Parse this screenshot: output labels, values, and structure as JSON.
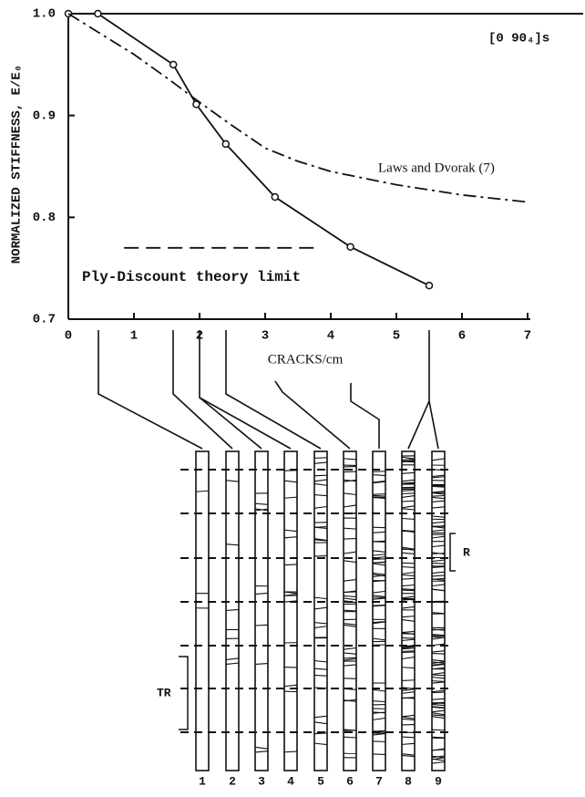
{
  "chart_data": {
    "type": "line",
    "ylabel": "NORMALIZED STIFFNESS, E/E₀",
    "xlabel": "CRACKS/cm",
    "annotation": "[0 90₄]s",
    "xlim": [
      0,
      7
    ],
    "xticks": [
      0,
      1,
      2,
      3,
      4,
      5,
      6,
      7
    ],
    "ylim": [
      0.7,
      1.0
    ],
    "yticks": [
      0.7,
      0.8,
      0.9,
      {
        "value": 1,
        "label": "1.0"
      }
    ],
    "series": [
      {
        "color": "#111111",
        "dash": "solid",
        "marker": "circle",
        "x": [
          0,
          0.45,
          1.6,
          1.95,
          2.4,
          3.15,
          4.3,
          5.5
        ],
        "values": [
          1.0,
          1.0,
          0.95,
          0.911,
          0.872,
          0.82,
          0.771,
          0.733
        ]
      },
      {
        "name": "Laws and Dvorak (7)",
        "color": "#111111",
        "dash": "dashdot",
        "marker": "none",
        "x": [
          0,
          0.5,
          1,
          1.5,
          2,
          2.5,
          3,
          3.5,
          4,
          5,
          6,
          7
        ],
        "values": [
          1.0,
          0.98,
          0.96,
          0.937,
          0.913,
          0.89,
          0.868,
          0.855,
          0.845,
          0.832,
          0.822,
          0.815
        ]
      },
      {
        "name": "Ply-Discount theory limit",
        "color": "#111111",
        "dash": "dash",
        "marker": "none",
        "x": [
          0.85,
          3.8
        ],
        "values": [
          0.77,
          0.77
        ]
      }
    ]
  },
  "diagram": {
    "specimens": [
      "1",
      "2",
      "3",
      "4",
      "5",
      "6",
      "7",
      "8",
      "9"
    ],
    "tr": "TR",
    "r": "R"
  }
}
